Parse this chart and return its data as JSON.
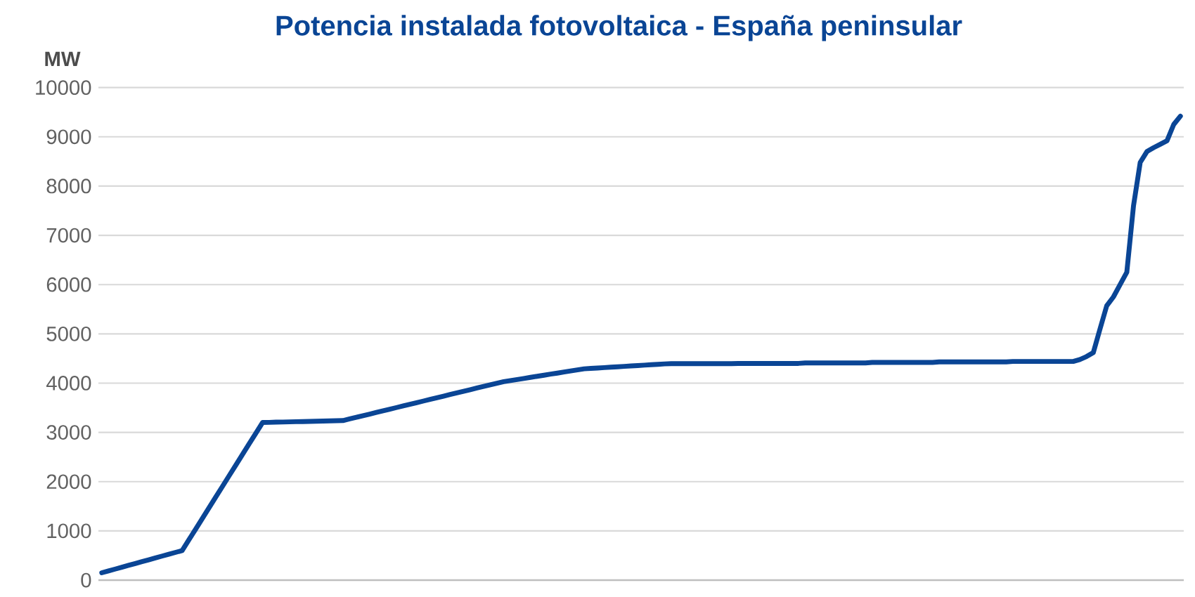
{
  "chart_data": {
    "type": "line",
    "title": "Potencia instalada fotovoltaica - España peninsular",
    "ylabel": "MW",
    "categories": [
      null,
      null,
      null,
      null,
      null,
      null,
      null,
      null,
      null,
      null,
      null,
      null,
      null,
      null,
      null,
      null,
      null,
      null,
      null,
      null,
      null,
      null,
      null,
      null,
      null,
      null,
      null,
      null,
      null,
      null,
      null,
      null,
      null,
      null,
      null,
      null,
      null,
      null,
      null,
      null,
      null,
      null,
      null,
      null,
      null,
      null,
      null,
      null,
      null,
      null,
      null,
      null,
      null,
      null,
      null,
      null,
      null,
      null,
      null,
      null,
      null,
      null,
      null,
      null,
      null,
      null,
      null,
      null,
      null,
      null,
      null,
      null,
      null,
      null,
      null,
      null,
      null,
      null,
      null,
      null,
      null,
      null,
      null,
      null,
      null,
      null,
      null,
      null,
      null,
      null,
      null,
      null,
      null,
      null,
      null,
      null,
      null,
      null,
      null,
      null,
      null,
      null,
      null,
      null,
      null,
      null,
      null,
      null,
      null,
      null,
      null,
      null,
      null,
      null,
      null,
      null,
      null,
      null,
      null,
      null,
      null,
      null,
      null,
      null,
      null,
      null,
      null,
      null,
      null,
      null,
      null,
      null,
      null,
      null,
      null,
      null,
      null,
      null,
      null,
      null,
      null,
      null,
      null,
      null,
      null,
      null,
      null,
      null,
      null,
      null,
      null,
      null,
      null,
      null,
      null,
      null,
      null,
      null,
      null,
      null,
      null,
      null
    ],
    "series": [
      {
        "color": "#0a4595",
        "values": [
          150,
          188,
          225,
          263,
          300,
          338,
          375,
          413,
          450,
          488,
          525,
          563,
          600,
          817,
          1033,
          1250,
          1467,
          1683,
          1900,
          2117,
          2333,
          2550,
          2767,
          2983,
          3200,
          3203,
          3207,
          3210,
          3213,
          3217,
          3220,
          3223,
          3227,
          3230,
          3233,
          3237,
          3240,
          3273,
          3306,
          3339,
          3372,
          3405,
          3438,
          3471,
          3504,
          3537,
          3570,
          3603,
          3636,
          3669,
          3702,
          3735,
          3768,
          3801,
          3834,
          3867,
          3900,
          3933,
          3966,
          3999,
          4030,
          4052,
          4073,
          4095,
          4117,
          4138,
          4160,
          4182,
          4203,
          4225,
          4247,
          4268,
          4290,
          4298,
          4307,
          4315,
          4323,
          4332,
          4340,
          4348,
          4357,
          4365,
          4373,
          4382,
          4390,
          4395,
          4395,
          4395,
          4395,
          4395,
          4395,
          4395,
          4395,
          4395,
          4395,
          4400,
          4400,
          4400,
          4400,
          4400,
          4400,
          4400,
          4400,
          4400,
          4400,
          4410,
          4410,
          4410,
          4410,
          4410,
          4410,
          4410,
          4410,
          4410,
          4410,
          4420,
          4420,
          4420,
          4420,
          4420,
          4420,
          4420,
          4420,
          4420,
          4420,
          4430,
          4430,
          4430,
          4430,
          4430,
          4430,
          4430,
          4430,
          4430,
          4430,
          4430,
          4440,
          4440,
          4440,
          4440,
          4440,
          4440,
          4440,
          4440,
          4440,
          4440,
          4480,
          4540,
          4620,
          5100,
          5570,
          5750,
          6000,
          6250,
          7600,
          8480,
          8700,
          8780,
          8850,
          8920,
          9250,
          9420
        ]
      }
    ],
    "ylim": [
      0,
      10000
    ],
    "yticks": [
      0,
      1000,
      2000,
      3000,
      4000,
      5000,
      6000,
      7000,
      8000,
      9000,
      10000
    ],
    "grid": "y",
    "legend": false,
    "marker": "none",
    "line_style": "solid"
  }
}
